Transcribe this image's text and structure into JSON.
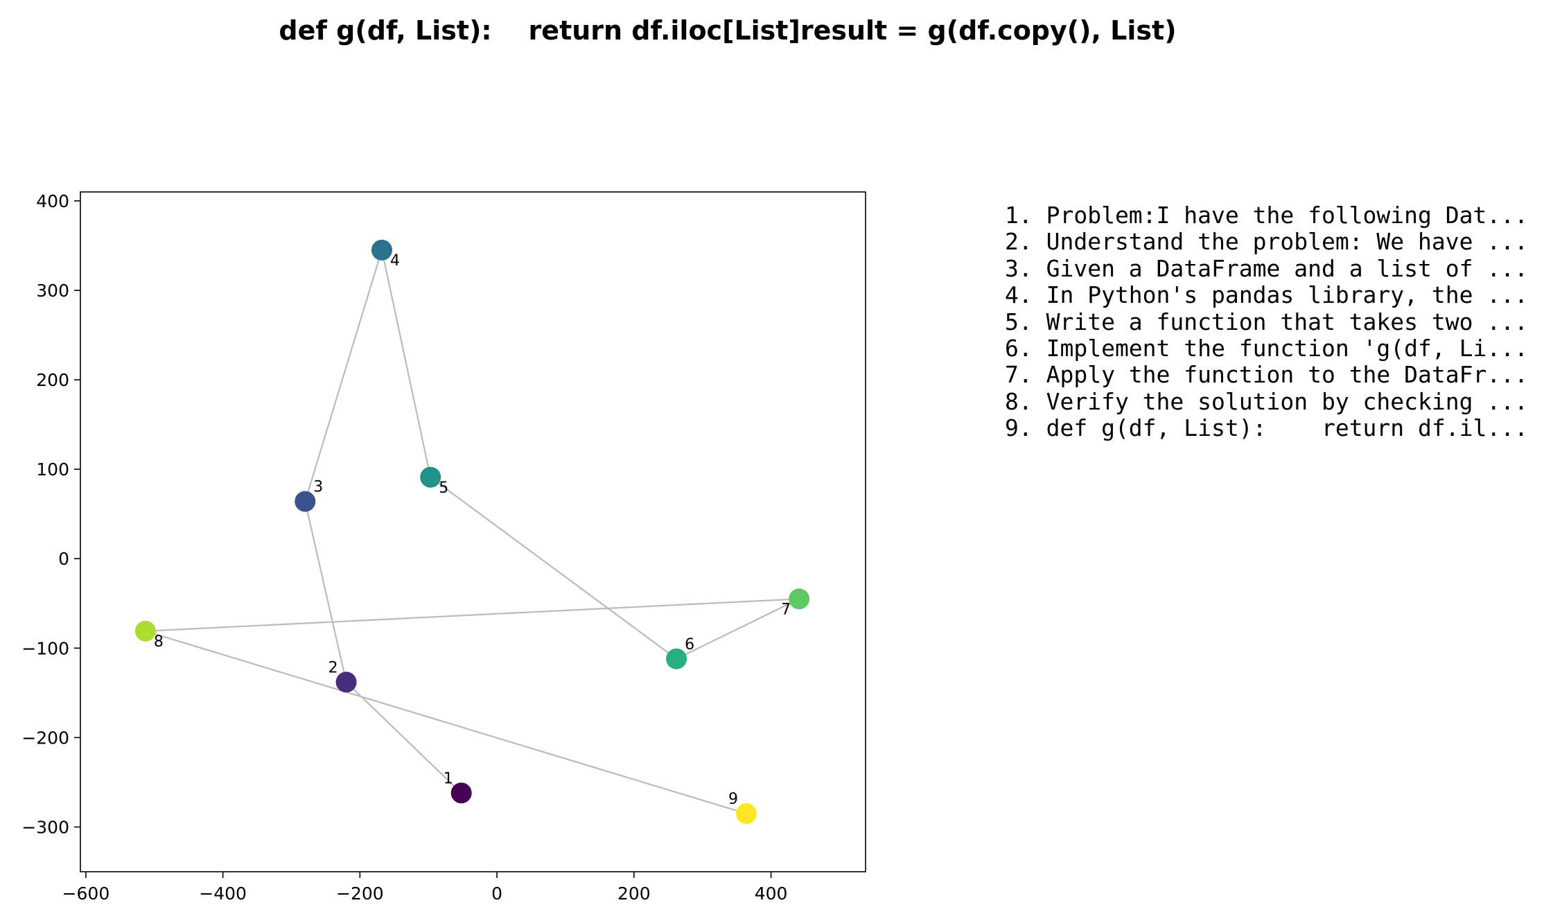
{
  "chart_data": {
    "type": "scatter",
    "title": "def g(df, List):    return df.iloc[List]result = g(df.copy(), List)",
    "xlabel": "",
    "ylabel": "",
    "xlim": [
      -608,
      538
    ],
    "ylim": [
      -350,
      410
    ],
    "xticks": [
      -600,
      -400,
      -200,
      0,
      200,
      400
    ],
    "yticks": [
      -300,
      -200,
      -100,
      0,
      100,
      200,
      300,
      400
    ],
    "grid": false,
    "connect_points": true,
    "line_color": "#bbbbbb",
    "colormap": "viridis",
    "points": [
      {
        "label": "1",
        "x": -52,
        "y": -262,
        "color": "#440154"
      },
      {
        "label": "2",
        "x": -220,
        "y": -138,
        "color": "#472d7b"
      },
      {
        "label": "3",
        "x": -280,
        "y": 64,
        "color": "#3b528b"
      },
      {
        "label": "4",
        "x": -168,
        "y": 345,
        "color": "#2c728e"
      },
      {
        "label": "5",
        "x": -97,
        "y": 91,
        "color": "#21918c"
      },
      {
        "label": "6",
        "x": 262,
        "y": -112,
        "color": "#28ae80"
      },
      {
        "label": "7",
        "x": 441,
        "y": -45,
        "color": "#5ec962"
      },
      {
        "label": "8",
        "x": -513,
        "y": -81,
        "color": "#addc30"
      },
      {
        "label": "9",
        "x": 364,
        "y": -285,
        "color": "#fde725"
      }
    ]
  },
  "steps": [
    "1. Problem:I have the following Dat...",
    "2. Understand the problem: We have ...",
    "3. Given a DataFrame and a list of ...",
    "4. In Python's pandas library, the ...",
    "5. Write a function that takes two ...",
    "6. Implement the function 'g(df, Li...",
    "7. Apply the function to the DataFr...",
    "8. Verify the solution by checking ...",
    "9. def g(df, List):    return df.il..."
  ]
}
